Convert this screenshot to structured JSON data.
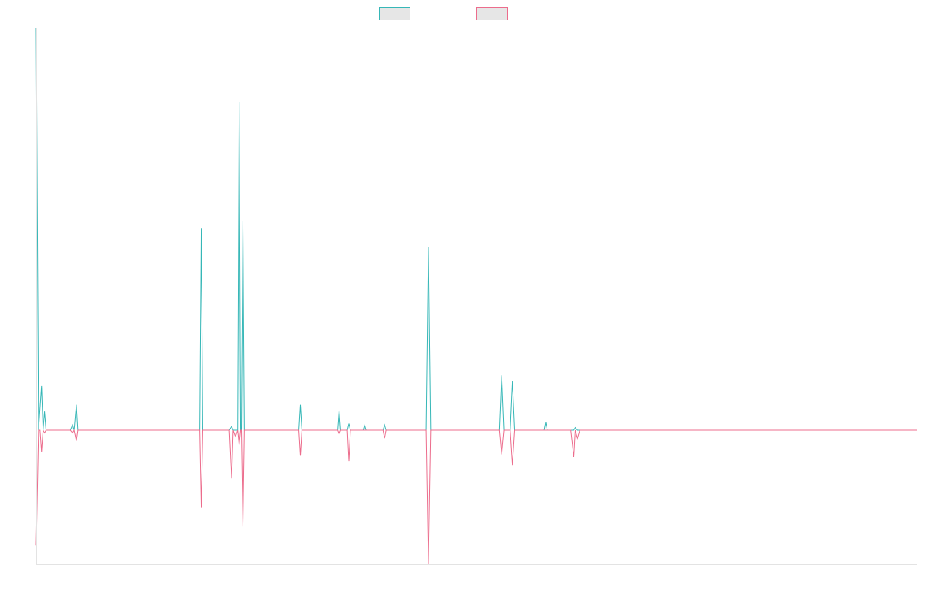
{
  "chart_data": {
    "type": "line",
    "title": "",
    "xlabel": "",
    "ylabel": "",
    "legend_position": "top-center",
    "grid": false,
    "ylim": [
      -1,
      3
    ],
    "x_range": [
      0,
      1163
    ],
    "series": [
      {
        "color": "#36b7b7",
        "legend_fill": "#e6e6e6",
        "points": [
          [
            0,
            3.0
          ],
          [
            3,
            0
          ],
          [
            7,
            0.33
          ],
          [
            9,
            0
          ],
          [
            11,
            0.14
          ],
          [
            13,
            0
          ],
          [
            45,
            0
          ],
          [
            48,
            0.04
          ],
          [
            50,
            0
          ],
          [
            53,
            0.19
          ],
          [
            55,
            0
          ],
          [
            64,
            0
          ],
          [
            69,
            0
          ],
          [
            216,
            0
          ],
          [
            218,
            1.51
          ],
          [
            220,
            0
          ],
          [
            255,
            0
          ],
          [
            258,
            0.03
          ],
          [
            260,
            0
          ],
          [
            266,
            0
          ],
          [
            268,
            2.45
          ],
          [
            270,
            0
          ],
          [
            271,
            0
          ],
          [
            273,
            1.56
          ],
          [
            275,
            0
          ],
          [
            278,
            0
          ],
          [
            347,
            0
          ],
          [
            349,
            0.19
          ],
          [
            351,
            0
          ],
          [
            370,
            0
          ],
          [
            375,
            0
          ],
          [
            398,
            0
          ],
          [
            400,
            0.15
          ],
          [
            402,
            0
          ],
          [
            411,
            0
          ],
          [
            413,
            0.05
          ],
          [
            415,
            0
          ],
          [
            432,
            0
          ],
          [
            434,
            0.04
          ],
          [
            436,
            0
          ],
          [
            458,
            0
          ],
          [
            460,
            0.04
          ],
          [
            462,
            0
          ],
          [
            466,
            0
          ],
          [
            515,
            0
          ],
          [
            518,
            1.37
          ],
          [
            521,
            0
          ],
          [
            612,
            0
          ],
          [
            615,
            0.41
          ],
          [
            618,
            0
          ],
          [
            626,
            0
          ],
          [
            629,
            0.37
          ],
          [
            632,
            0
          ],
          [
            671,
            0
          ],
          [
            673,
            0.06
          ],
          [
            675,
            0
          ],
          [
            706,
            0
          ],
          [
            710,
            0
          ],
          [
            712,
            0.02
          ],
          [
            715,
            0
          ],
          [
            718,
            0
          ],
          [
            736,
            0
          ],
          [
            1163,
            0
          ]
        ]
      },
      {
        "color": "#ec6c8c",
        "legend_fill": "#e6e6e6",
        "points": [
          [
            0,
            -0.86
          ],
          [
            3,
            0
          ],
          [
            5,
            0
          ],
          [
            7,
            -0.16
          ],
          [
            9,
            0
          ],
          [
            11,
            -0.02
          ],
          [
            13,
            0
          ],
          [
            45,
            0
          ],
          [
            48,
            -0.02
          ],
          [
            50,
            0
          ],
          [
            53,
            -0.08
          ],
          [
            55,
            0
          ],
          [
            64,
            0
          ],
          [
            69,
            0
          ],
          [
            216,
            0
          ],
          [
            218,
            -0.58
          ],
          [
            220,
            0
          ],
          [
            255,
            0
          ],
          [
            258,
            -0.36
          ],
          [
            260,
            0
          ],
          [
            263,
            -0.05
          ],
          [
            266,
            0
          ],
          [
            268,
            -0.11
          ],
          [
            270,
            0
          ],
          [
            271,
            0
          ],
          [
            273,
            -0.72
          ],
          [
            275,
            0
          ],
          [
            278,
            0
          ],
          [
            347,
            0
          ],
          [
            349,
            -0.19
          ],
          [
            351,
            0
          ],
          [
            370,
            0
          ],
          [
            375,
            0
          ],
          [
            398,
            0
          ],
          [
            400,
            -0.03
          ],
          [
            402,
            0
          ],
          [
            411,
            0
          ],
          [
            413,
            -0.23
          ],
          [
            415,
            0
          ],
          [
            432,
            0
          ],
          [
            434,
            0
          ],
          [
            436,
            0
          ],
          [
            458,
            0
          ],
          [
            460,
            -0.06
          ],
          [
            462,
            0
          ],
          [
            466,
            0
          ],
          [
            515,
            0
          ],
          [
            518,
            -1.0
          ],
          [
            521,
            0
          ],
          [
            612,
            0
          ],
          [
            615,
            -0.18
          ],
          [
            618,
            0
          ],
          [
            626,
            0
          ],
          [
            629,
            -0.26
          ],
          [
            632,
            0
          ],
          [
            671,
            0
          ],
          [
            673,
            0
          ],
          [
            675,
            0
          ],
          [
            706,
            0
          ],
          [
            710,
            -0.2
          ],
          [
            712,
            0
          ],
          [
            715,
            -0.06
          ],
          [
            718,
            0
          ],
          [
            736,
            0
          ],
          [
            1163,
            0
          ]
        ]
      }
    ]
  }
}
